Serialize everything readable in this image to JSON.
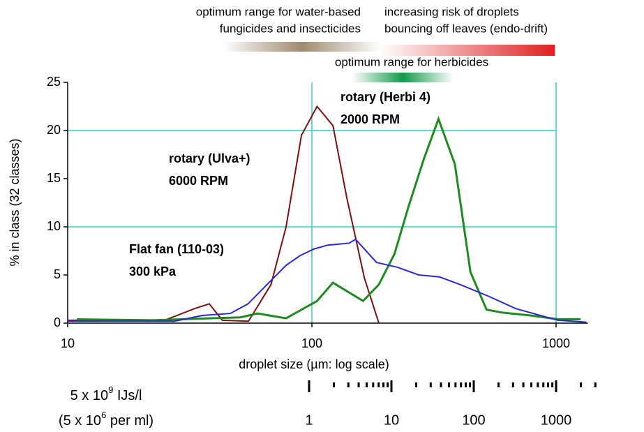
{
  "chart_data": {
    "type": "line",
    "x_label": "droplet size (µm: log scale)",
    "y_label": "% in class (32 classes)",
    "x_log": true,
    "xlim": [
      10,
      1350
    ],
    "ylim": [
      0,
      25
    ],
    "xticks": [
      10,
      100,
      1000
    ],
    "yticks": [
      0,
      5,
      10,
      15,
      20,
      25
    ],
    "x_grid": [
      100,
      1000
    ],
    "y_grid": [
      10,
      20
    ],
    "grid_color": "#33cccc",
    "series": [
      {
        "name": "rotary (Ulva+)",
        "detail": "6000 RPM",
        "color": "#7a1010",
        "label_color": "#8b2f0c",
        "x": [
          10,
          25,
          33,
          38,
          43,
          55,
          68,
          78.4,
          90.6,
          105,
          122,
          139,
          164,
          188
        ],
        "values": [
          0.3,
          0.3,
          1.5,
          2,
          0.3,
          0.2,
          4,
          10,
          19.5,
          22.5,
          20.5,
          13,
          4.7,
          0
        ]
      },
      {
        "name": "rotary (Herbi 4)",
        "detail": "2000 RPM",
        "color": "#1f8a1f",
        "label_color": "#1f8a1f",
        "x": [
          10.9,
          22.4,
          38,
          51,
          60,
          78.4,
          105,
          122,
          162,
          188,
          218,
          248,
          287,
          330,
          385,
          446,
          519,
          600,
          784,
          1020,
          1260
        ],
        "values": [
          0.4,
          0.3,
          0.5,
          0.6,
          1.0,
          0.5,
          2.3,
          4.2,
          2.3,
          4.0,
          7.2,
          12,
          17,
          21.2,
          16.5,
          5.3,
          1.4,
          1.1,
          0.8,
          0.4,
          0.4
        ]
      },
      {
        "name": "Flat fan (110-03)",
        "detail": "300 kPa",
        "color": "#2a2ad0",
        "label_color": "#2a2ad0",
        "x": [
          10,
          27.4,
          35.6,
          46.3,
          54.7,
          64.3,
          78.4,
          89.4,
          102,
          116,
          142,
          151,
          184,
          224,
          274,
          333,
          405,
          528,
          685,
          890,
          1020,
          1330
        ],
        "values": [
          0.2,
          0.2,
          0.8,
          1.0,
          2.0,
          3.8,
          6.0,
          7.0,
          7.7,
          8.1,
          8.3,
          8.7,
          6.3,
          5.8,
          5.0,
          4.8,
          4.0,
          2.8,
          1.5,
          0.7,
          0.3,
          0.1
        ]
      }
    ],
    "ranges": [
      {
        "lines": [
          "optimum range for water-based",
          "fungicides and insecticides"
        ],
        "color": "#8a6a40"
      },
      {
        "lines": [
          "increasing risk of droplets",
          "bouncing off leaves (endo-drift)"
        ],
        "color": "#e02020"
      },
      {
        "lines": [
          "optimum range for herbicides"
        ],
        "color": "#1a9a5a"
      }
    ],
    "concentration": {
      "lines": [
        {
          "base": "5 x 10",
          "exp": "9",
          "rest": " IJs/l"
        },
        {
          "base": "(5 x 10",
          "exp": "6",
          "rest": " per ml)"
        }
      ],
      "lim": [
        1,
        1000
      ],
      "ticks": [
        1,
        10,
        100,
        1000
      ],
      "minor_ticks": [
        2,
        3,
        4,
        5,
        6,
        7,
        8,
        9,
        20,
        30,
        40,
        50,
        60,
        70,
        80,
        90,
        200,
        300,
        400,
        500,
        600,
        700,
        800,
        900,
        2000,
        3000
      ]
    }
  }
}
